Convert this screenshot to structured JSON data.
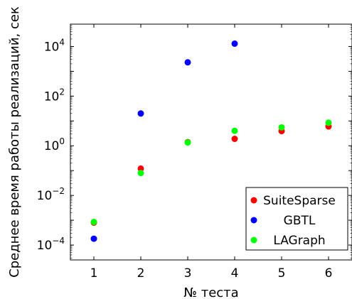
{
  "chart_data": {
    "type": "scatter",
    "xlabel": "№ теста",
    "ylabel": "Среднее время работы реализаций, сек",
    "xlim": [
      0.5,
      6.5
    ],
    "ylim_log10": [
      -4.6,
      4.9
    ],
    "y_scale": "log",
    "x_ticks": [
      "1",
      "2",
      "3",
      "4",
      "5",
      "6"
    ],
    "y_ticks": [
      {
        "base": "10",
        "exp": "−4",
        "log": -4
      },
      {
        "base": "10",
        "exp": "−2",
        "log": -2
      },
      {
        "base": "10",
        "exp": "0",
        "log": 0
      },
      {
        "base": "10",
        "exp": "2",
        "log": 2
      },
      {
        "base": "10",
        "exp": "4",
        "log": 4
      }
    ],
    "legend_position": "bottom-right",
    "series": [
      {
        "name": "SuiteSparse",
        "color": "#ff0000",
        "x": [
          1,
          2,
          3,
          4,
          5,
          6
        ],
        "y": [
          0.0008,
          0.12,
          1.4,
          1.9,
          3.9,
          6.0
        ]
      },
      {
        "name": "GBTL",
        "color": "#0000ff",
        "x": [
          1,
          2,
          3,
          4
        ],
        "y": [
          0.00018,
          20,
          2300,
          13000
        ]
      },
      {
        "name": "LAGraph",
        "color": "#00ff00",
        "x": [
          1,
          2,
          3,
          4,
          5,
          6
        ],
        "y": [
          0.00085,
          0.08,
          1.35,
          4.0,
          5.5,
          8.5
        ]
      }
    ]
  }
}
